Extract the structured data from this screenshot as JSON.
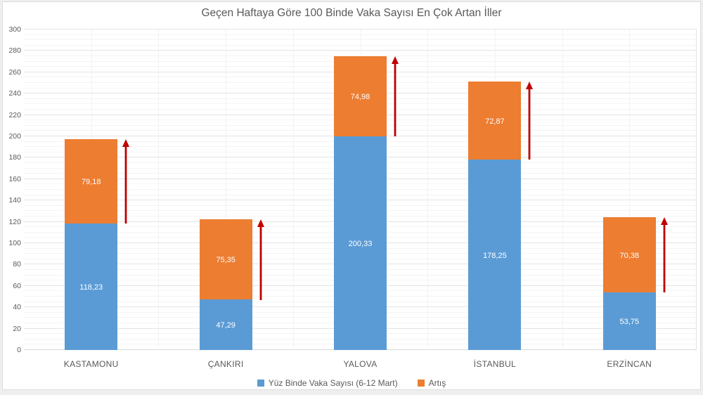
{
  "title": "Geçen Haftaya Göre 100 Binde Vaka Sayısı En Çok Artan İller",
  "colors": {
    "cases_blue": "#5B9BD5",
    "increase_orange": "#ED7D31",
    "arrow_red": "#C00000",
    "text_gray": "#595959",
    "grid_major": "#E3E3E3",
    "grid_minor": "#F4F4F4",
    "axis_line": "#D9D9D9",
    "background": "#FFFFFF"
  },
  "legend": [
    {
      "label": "Yüz Binde Vaka Sayısı (6-12 Mart)",
      "color": "#5B9BD5"
    },
    {
      "label": "Artış",
      "color": "#ED7D31"
    }
  ],
  "chart_data": {
    "type": "bar",
    "stacked": true,
    "title": "Geçen Haftaya Göre 100 Binde Vaka Sayısı En Çok Artan İller",
    "categories": [
      "KASTAMONU",
      "ÇANKIRI",
      "YALOVA",
      "İSTANBUL",
      "ERZİNCAN"
    ],
    "series": [
      {
        "name": "Yüz Binde Vaka Sayısı (6-12 Mart)",
        "color": "#5B9BD5",
        "values": [
          118.23,
          47.29,
          200.33,
          178.25,
          53.75
        ],
        "labels": [
          "118,23",
          "47,29",
          "200,33",
          "178,25",
          "53,75"
        ]
      },
      {
        "name": "Artış",
        "color": "#ED7D31",
        "values": [
          79.18,
          75.35,
          74.98,
          72.87,
          70.38
        ],
        "labels": [
          "79,18",
          "75,35",
          "74,98",
          "72,87",
          "70,38"
        ]
      }
    ],
    "totals": [
      197.41,
      122.64,
      275.31,
      251.12,
      124.13
    ],
    "xlabel": "",
    "ylabel": "",
    "ylim": [
      0,
      300
    ],
    "ytick_step": 20,
    "ytick_minor_step": 5,
    "yticks": [
      "0",
      "20",
      "40",
      "60",
      "80",
      "100",
      "120",
      "140",
      "160",
      "180",
      "200",
      "220",
      "240",
      "260",
      "280",
      "300"
    ],
    "grid": true,
    "legend_position": "bottom",
    "annotations": [
      {
        "type": "up-arrow",
        "color": "#C00000",
        "beside_category": "KASTAMONU"
      },
      {
        "type": "up-arrow",
        "color": "#C00000",
        "beside_category": "ÇANKIRI"
      },
      {
        "type": "up-arrow",
        "color": "#C00000",
        "beside_category": "YALOVA"
      },
      {
        "type": "up-arrow",
        "color": "#C00000",
        "beside_category": "İSTANBUL"
      },
      {
        "type": "up-arrow",
        "color": "#C00000",
        "beside_category": "ERZİNCAN"
      }
    ]
  }
}
